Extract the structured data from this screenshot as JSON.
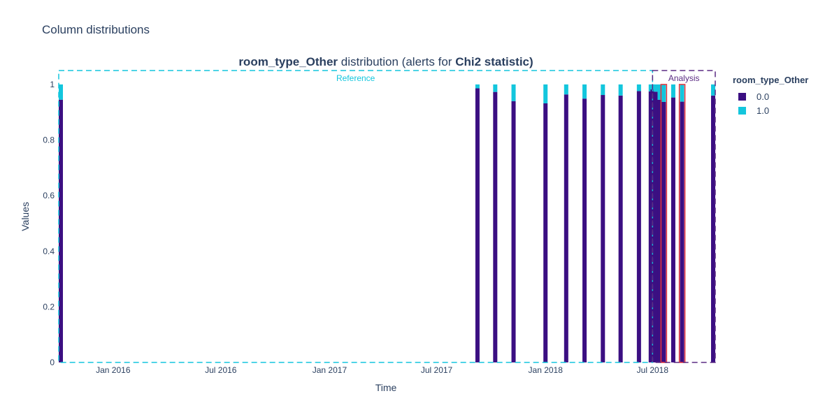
{
  "page_title": "Column distributions",
  "chart_data": {
    "type": "bar",
    "stacked": true,
    "title_parts": [
      {
        "text": "room_type_Other",
        "bold": true
      },
      {
        "text": " distribution (alerts for ",
        "bold": false
      },
      {
        "text": "Chi2 statistic)",
        "bold": true
      }
    ],
    "xlabel": "Time",
    "ylabel": "Values",
    "ylim": [
      0,
      1.05
    ],
    "y_ticks": [
      0,
      0.2,
      0.4,
      0.6,
      0.8,
      1
    ],
    "y_tick_labels": [
      "0",
      "0.2",
      "0.4",
      "0.6",
      "0.8",
      "1"
    ],
    "x_range": [
      "2015-10-01",
      "2018-10-15"
    ],
    "x_ticks": [
      "2016-01-01",
      "2016-07-01",
      "2017-01-01",
      "2017-07-01",
      "2018-01-01",
      "2018-07-01"
    ],
    "x_tick_labels": [
      "Jan 2016",
      "Jul 2016",
      "Jan 2017",
      "Jul 2017",
      "Jan 2018",
      "Jul 2018"
    ],
    "grid": false,
    "legend": {
      "title": "room_type_Other",
      "placement": "right",
      "entries": [
        {
          "label": "0.0",
          "color": "#3b0f82"
        },
        {
          "label": "1.0",
          "color": "#13c6dd"
        }
      ]
    },
    "regions": [
      {
        "label": "Reference",
        "start": "2015-10-01",
        "end": "2018-07-01",
        "color": "#13c6dd"
      },
      {
        "label": "Analysis",
        "start": "2018-07-01",
        "end": "2018-10-15",
        "color": "#5b2c83"
      }
    ],
    "alert_color": "#e8343b",
    "series": [
      {
        "name": "0.0",
        "color": "#3b0f82",
        "values": [
          0.945,
          0.986,
          0.973,
          0.94,
          0.932,
          0.964,
          0.949,
          0.962,
          0.96,
          0.976,
          0.975,
          0.982,
          0.974,
          0.945,
          0.937,
          0.953,
          0.938,
          0.96
        ]
      },
      {
        "name": "1.0",
        "color": "#13c6dd",
        "values": [
          0.055,
          0.014,
          0.027,
          0.06,
          0.068,
          0.036,
          0.051,
          0.038,
          0.04,
          0.024,
          0.025,
          0.018,
          0.026,
          0.055,
          0.063,
          0.047,
          0.062,
          0.04
        ]
      }
    ],
    "x": [
      "2015-10-01",
      "2017-09-08",
      "2017-10-08",
      "2017-11-08",
      "2018-01-01",
      "2018-02-05",
      "2018-03-08",
      "2018-04-08",
      "2018-05-08",
      "2018-06-08",
      "2018-06-28",
      "2018-07-01",
      "2018-07-06",
      "2018-07-13",
      "2018-07-20",
      "2018-08-05",
      "2018-08-20",
      "2018-10-15"
    ],
    "alerts": [
      false,
      false,
      false,
      false,
      false,
      false,
      false,
      false,
      false,
      false,
      false,
      false,
      false,
      false,
      true,
      false,
      true,
      false
    ]
  }
}
